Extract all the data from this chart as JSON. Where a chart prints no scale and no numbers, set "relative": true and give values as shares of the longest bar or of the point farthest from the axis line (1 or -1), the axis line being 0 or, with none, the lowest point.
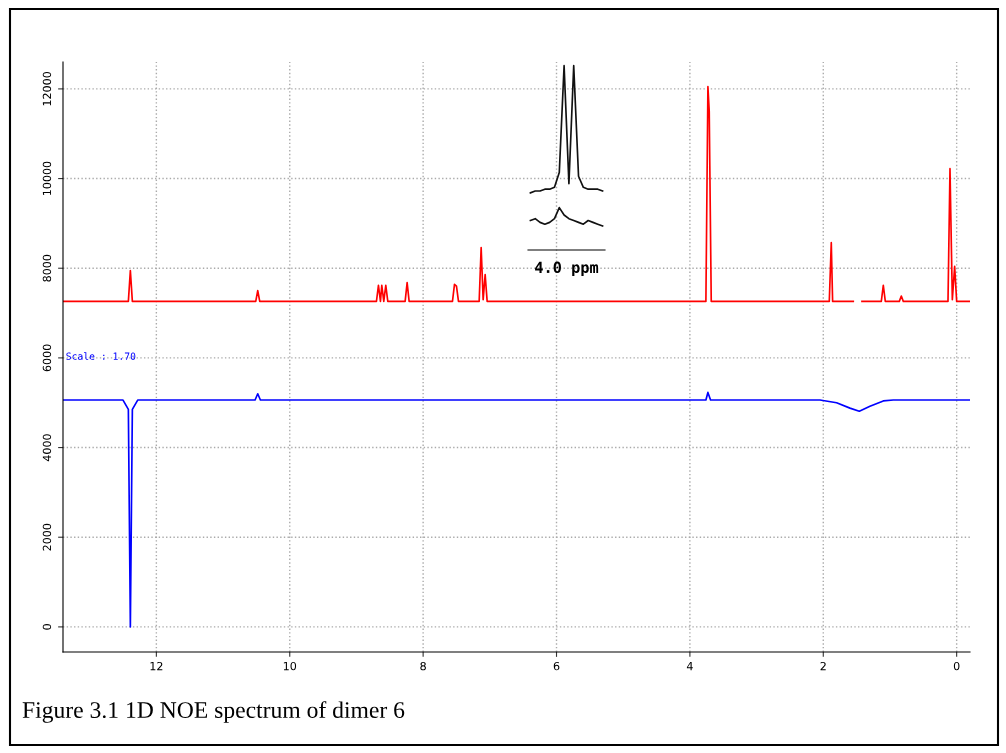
{
  "chart_data": [
    {
      "type": "line",
      "xlim": [
        13.4,
        -0.2
      ],
      "xticks": [
        12,
        10,
        8,
        6,
        4,
        2,
        0
      ],
      "ylim": [
        -560,
        12600
      ],
      "yticks": [
        0,
        2000,
        4000,
        6000,
        8000,
        10000,
        12000
      ],
      "grid": true,
      "marker": "none",
      "line_style": "solid",
      "annotations": [
        "Scale : 1.70",
        "Figure 3.1 1D NOE spectrum of dimer 6"
      ],
      "series": [
        {
          "color": "#ff0000",
          "x": [
            13.4,
            12.42,
            12.39,
            12.36,
            10.51,
            10.48,
            10.45,
            8.7,
            8.67,
            8.64,
            8.62,
            8.59,
            8.56,
            8.53,
            8.27,
            8.24,
            8.21,
            7.56,
            7.53,
            7.5,
            7.47,
            7.16,
            7.13,
            7.1,
            7.07,
            7.04,
            3.76,
            3.73,
            3.71,
            3.68,
            1.91,
            1.88,
            1.86,
            1.55,
            1.5,
            1.42,
            1.13,
            1.1,
            1.07,
            0.86,
            0.83,
            0.8,
            0.13,
            0.1,
            0.065,
            0.03,
            0.0,
            -0.2
          ],
          "values": [
            7260,
            7260,
            7950,
            7260,
            7260,
            7500,
            7260,
            7260,
            7620,
            7260,
            7620,
            7260,
            7620,
            7260,
            7260,
            7680,
            7260,
            7260,
            7640,
            7600,
            7260,
            7260,
            8460,
            7300,
            7860,
            7260,
            7260,
            12050,
            11500,
            7260,
            7260,
            8570,
            7260,
            7260,
            null,
            7260,
            7260,
            7620,
            7260,
            7260,
            7380,
            7260,
            7260,
            10220,
            7300,
            8040,
            7260,
            7260
          ]
        },
        {
          "color": "#0000ff",
          "x": [
            13.4,
            12.5,
            12.42,
            12.39,
            12.36,
            12.28,
            10.52,
            10.48,
            10.44,
            3.76,
            3.73,
            3.69,
            2.05,
            1.8,
            1.6,
            1.46,
            1.3,
            1.1,
            0.95,
            -0.2
          ],
          "values": [
            5060,
            5060,
            4850,
            0,
            4850,
            5060,
            5060,
            5200,
            5060,
            5060,
            5230,
            5060,
            5060,
            5000,
            4880,
            4810,
            4920,
            5040,
            5060,
            5060
          ]
        }
      ]
    },
    {
      "type": "line",
      "relative": true,
      "categories": [
        null,
        null,
        null,
        null,
        null,
        null,
        null,
        null,
        null,
        null,
        null,
        null,
        null,
        null,
        null,
        null
      ],
      "marker": "none",
      "line_style": "solid",
      "annotations": [
        "4.0 ppm"
      ],
      "series": [
        {
          "color": "#111111",
          "values": [
            0.31,
            0.32,
            0.32,
            0.33,
            0.33,
            0.34,
            0.42,
            1.0,
            0.36,
            1.0,
            0.4,
            0.34,
            0.33,
            0.33,
            0.33,
            0.32
          ]
        },
        {
          "color": "#111111",
          "values": [
            0.16,
            0.17,
            0.15,
            0.14,
            0.15,
            0.17,
            0.23,
            0.19,
            0.17,
            0.16,
            0.15,
            0.14,
            0.16,
            0.15,
            0.14,
            0.13
          ]
        }
      ]
    }
  ]
}
